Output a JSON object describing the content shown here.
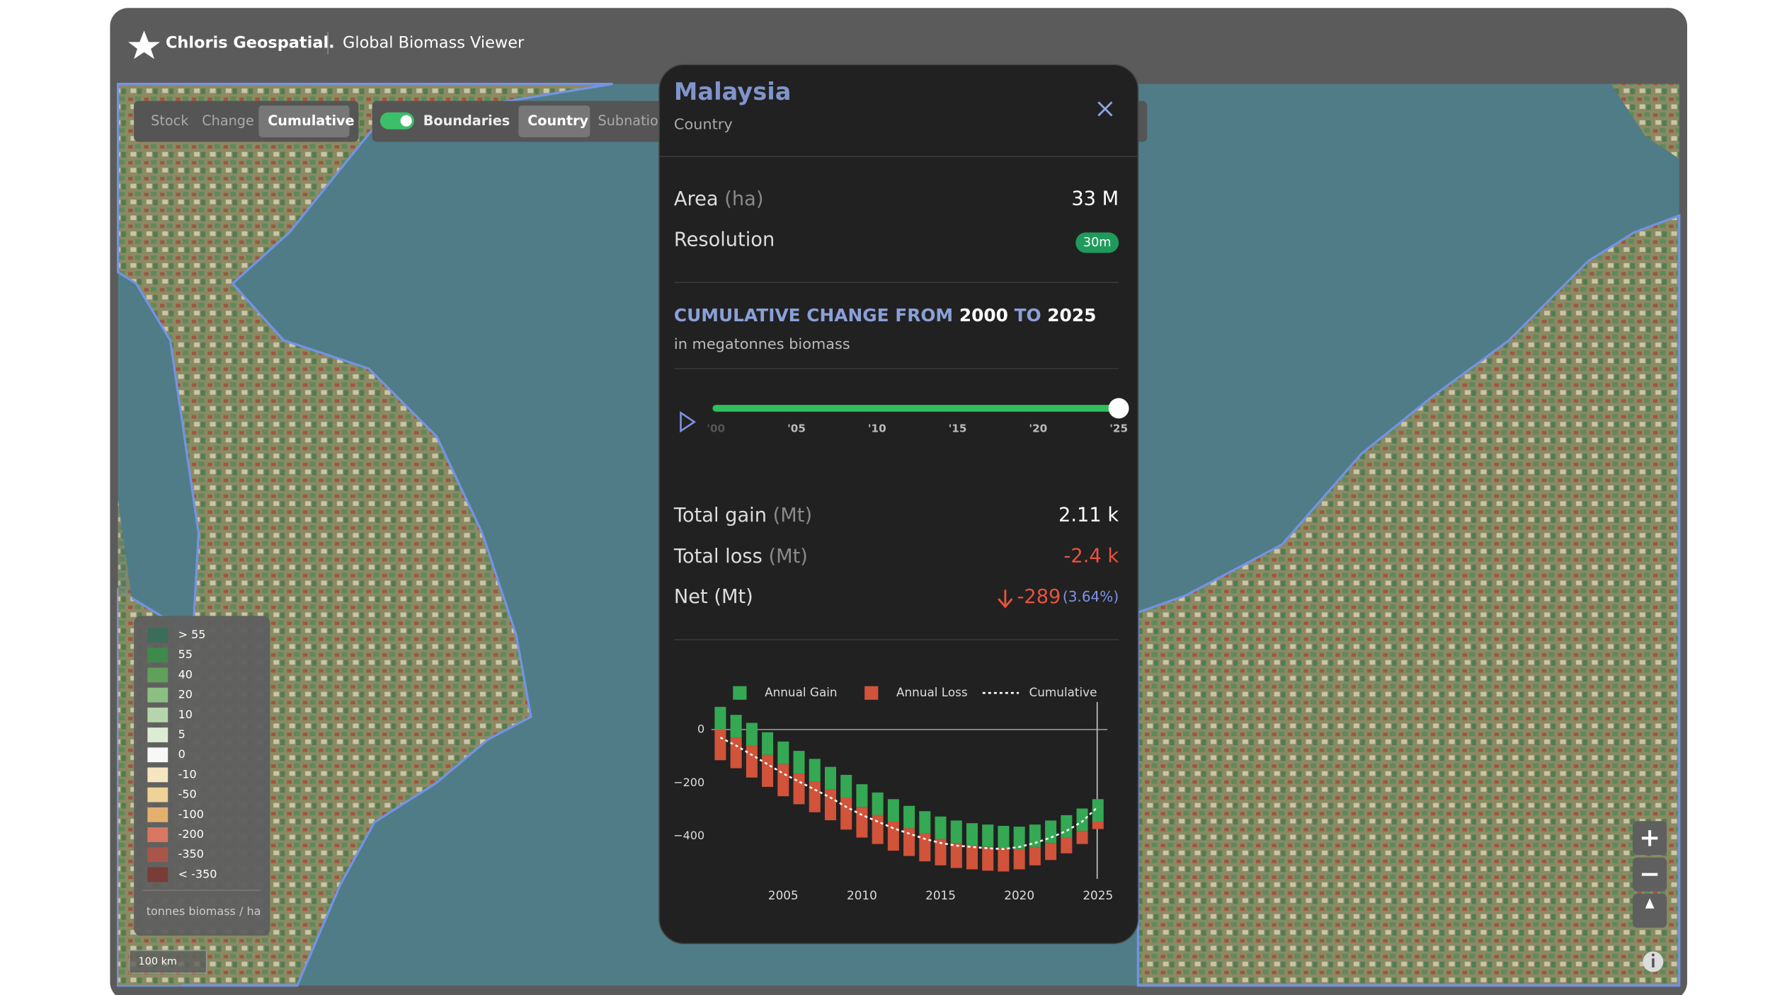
{
  "header": {
    "brand": "Chloris Geospatial.",
    "app": "Global Biomass Viewer"
  },
  "toolbar": {
    "modes": [
      "Stock",
      "Change",
      "Cumulative"
    ],
    "boundaries": "Boundaries",
    "levels": [
      "Country",
      "Subnation"
    ]
  },
  "panel": {
    "name": "Malaysia",
    "level": "Country",
    "area": {
      "label": "Area",
      "unit": "(ha)",
      "value": "33 M"
    },
    "resolution": {
      "label": "Resolution",
      "value": "30m"
    },
    "heading": {
      "prefix": "CUMULATIVE CHANGE FROM",
      "from": "2000",
      "to_word": "TO",
      "to": "2025"
    },
    "subheading": "in megatonnes biomass",
    "slider_labels": [
      "'00",
      "'05",
      "'10",
      "'15",
      "'20",
      "'25"
    ],
    "totals": [
      {
        "label": "Total gain",
        "unit": "(Mt)",
        "value": "2.11 k"
      },
      {
        "label": "Total loss",
        "unit": "(Mt)",
        "value": "-2.4 k"
      }
    ],
    "net": {
      "label": "Net (Mt)",
      "value": "-289",
      "percent": "(3.64%)"
    }
  },
  "chart_data": {
    "type": "bar",
    "x": [
      2001,
      2002,
      2003,
      2004,
      2005,
      2006,
      2007,
      2008,
      2009,
      2010,
      2011,
      2012,
      2013,
      2014,
      2015,
      2016,
      2017,
      2018,
      2019,
      2020,
      2021,
      2022,
      2023,
      2024,
      2025
    ],
    "series": [
      {
        "name": "Annual Gain",
        "color": "#34a853",
        "values": [
          85,
          85,
          85,
          85,
          85,
          85,
          85,
          85,
          85,
          85,
          84,
          84,
          84,
          84,
          84,
          84,
          84,
          84,
          84,
          84,
          84,
          84,
          84,
          84,
          84
        ]
      },
      {
        "name": "Annual Loss",
        "color": "#d0533a",
        "values": [
          -115,
          -115,
          -120,
          -120,
          -120,
          -115,
          -115,
          -115,
          -120,
          -115,
          -109,
          -109,
          -104,
          -104,
          -99,
          -94,
          -89,
          -89,
          -87,
          -76,
          -69,
          -64,
          -59,
          -49,
          -28
        ]
      },
      {
        "name": "Cumulative",
        "color": "#ffffff",
        "values": [
          -30,
          -60,
          -95,
          -130,
          -165,
          -195,
          -225,
          -255,
          -290,
          -320,
          -345,
          -370,
          -390,
          -410,
          -425,
          -435,
          -440,
          -445,
          -448,
          -440,
          -425,
          -405,
          -380,
          -345,
          -289
        ]
      }
    ],
    "xlim": [
      2000,
      2025.6
    ],
    "xticks": [
      2005,
      2010,
      2015,
      2020,
      2025
    ],
    "ylim": [
      -560,
      120
    ],
    "yticks": [
      0,
      {
        "value": -200,
        "label": "−200"
      },
      {
        "value": -400,
        "label": "−400"
      }
    ],
    "grid": false
  },
  "map_legend": {
    "items": [
      {
        "label": "> 55",
        "color": "#3b6e5a"
      },
      {
        "label": "55",
        "color": "#3e8a4a"
      },
      {
        "label": "40",
        "color": "#5fa05a"
      },
      {
        "label": "20",
        "color": "#8cc083"
      },
      {
        "label": "10",
        "color": "#b5d6ac"
      },
      {
        "label": "5",
        "color": "#dbebd4"
      },
      {
        "label": "0",
        "color": "#f8f8f8"
      },
      {
        "label": "-10",
        "color": "#f5e6c0"
      },
      {
        "label": "-50",
        "color": "#eed296"
      },
      {
        "label": "-100",
        "color": "#e3b06e"
      },
      {
        "label": "-200",
        "color": "#d97862"
      },
      {
        "label": "-350",
        "color": "#a8564a"
      },
      {
        "label": "< -350",
        "color": "#7a3c36"
      }
    ],
    "unit": "tonnes biomass / ha"
  },
  "scale_bar": "100 km"
}
